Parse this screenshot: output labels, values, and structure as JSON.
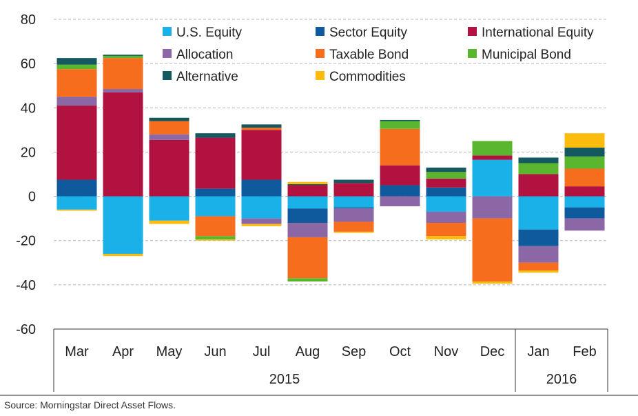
{
  "chart_data": {
    "type": "bar",
    "stacked": true,
    "categories": [
      "Mar",
      "Apr",
      "May",
      "Jun",
      "Jul",
      "Aug",
      "Sep",
      "Oct",
      "Nov",
      "Dec",
      "Jan",
      "Feb"
    ],
    "year_groups": [
      {
        "label": "2015",
        "from": 0,
        "to": 9
      },
      {
        "label": "2016",
        "from": 10,
        "to": 11
      }
    ],
    "ylim": [
      -60,
      80
    ],
    "yticks": [
      80,
      60,
      40,
      20,
      0,
      -20,
      -40,
      -60
    ],
    "grid": true,
    "legend_position": "top",
    "series": [
      {
        "name": "U.S. Equity",
        "color": "#1ab1e8",
        "values": [
          -6,
          -26,
          -11,
          -9,
          -10,
          -5.5,
          -5,
          0,
          -7,
          16.5,
          -15,
          -5
        ]
      },
      {
        "name": "Sector Equity",
        "color": "#0f5a9c",
        "values": [
          7.5,
          0,
          0,
          3.5,
          7.5,
          -6.5,
          -0.5,
          5,
          4,
          0,
          -7.5,
          -5
        ]
      },
      {
        "name": "International Equity",
        "color": "#b1123f",
        "values": [
          33.5,
          47,
          25.5,
          23,
          22.5,
          5,
          6,
          9,
          4,
          2,
          10,
          4.5
        ]
      },
      {
        "name": "Allocation",
        "color": "#8b67a6",
        "values": [
          4,
          1.5,
          2.5,
          0,
          -2.5,
          -6.5,
          -6,
          -4.5,
          -5,
          -10,
          -7.5,
          -5.5
        ]
      },
      {
        "name": "Taxable Bond",
        "color": "#f66d1d",
        "values": [
          12.5,
          14,
          6,
          -9,
          1,
          -18.5,
          -4.5,
          16.5,
          -6,
          -28.5,
          -3.5,
          8
        ]
      },
      {
        "name": "Municipal Bond",
        "color": "#5ab52f",
        "values": [
          2,
          1,
          0,
          -1.5,
          0,
          -1.5,
          0,
          3.5,
          3,
          6.5,
          5,
          5.5
        ]
      },
      {
        "name": "Alternative",
        "color": "#14595f",
        "values": [
          3,
          0.5,
          1.5,
          2,
          1.5,
          0.5,
          1.5,
          0.5,
          2,
          0,
          2.5,
          4
        ]
      },
      {
        "name": "Commodities",
        "color": "#fbbc0e",
        "values": [
          -0.5,
          -1,
          -1.5,
          -0.5,
          -1,
          1,
          -0.5,
          0,
          -1.5,
          -1,
          -1,
          6.5
        ]
      }
    ],
    "source": "Source: Morningstar Direct Asset Flows."
  }
}
